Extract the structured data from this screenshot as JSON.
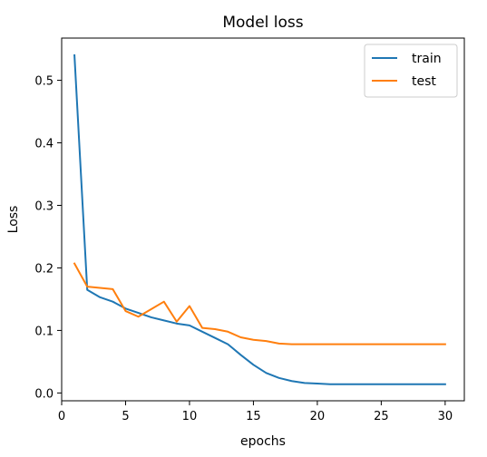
{
  "chart_data": {
    "type": "line",
    "title": "Model loss",
    "xlabel": "epochs",
    "ylabel": "Loss",
    "xlim": [
      0,
      31.5
    ],
    "ylim": [
      -0.0125,
      0.5675
    ],
    "xticks": [
      0,
      5,
      10,
      15,
      20,
      25,
      30
    ],
    "xtick_labels": [
      "0",
      "5",
      "10",
      "15",
      "20",
      "25",
      "30"
    ],
    "yticks": [
      0.0,
      0.1,
      0.2,
      0.3,
      0.4,
      0.5
    ],
    "ytick_labels": [
      "0.0",
      "0.1",
      "0.2",
      "0.3",
      "0.4",
      "0.5"
    ],
    "grid": false,
    "legend_position": "top-right",
    "x": [
      1,
      2,
      3,
      4,
      5,
      6,
      7,
      8,
      9,
      10,
      11,
      12,
      13,
      14,
      15,
      16,
      17,
      18,
      19,
      20,
      21,
      22,
      23,
      24,
      25,
      26,
      27,
      28,
      29,
      30
    ],
    "series": [
      {
        "name": "train",
        "color": "#1f77b4",
        "values": [
          0.54,
          0.165,
          0.153,
          0.146,
          0.135,
          0.128,
          0.121,
          0.116,
          0.111,
          0.108,
          0.098,
          0.088,
          0.078,
          0.061,
          0.045,
          0.032,
          0.024,
          0.019,
          0.016,
          0.015,
          0.014,
          0.014,
          0.014,
          0.014,
          0.014,
          0.014,
          0.014,
          0.014,
          0.014,
          0.014
        ]
      },
      {
        "name": "test",
        "color": "#ff7f0e",
        "values": [
          0.207,
          0.17,
          0.168,
          0.166,
          0.131,
          0.122,
          0.134,
          0.146,
          0.114,
          0.139,
          0.104,
          0.102,
          0.098,
          0.089,
          0.085,
          0.083,
          0.079,
          0.078,
          0.078,
          0.078,
          0.078,
          0.078,
          0.078,
          0.078,
          0.078,
          0.078,
          0.078,
          0.078,
          0.078,
          0.078
        ]
      }
    ]
  }
}
